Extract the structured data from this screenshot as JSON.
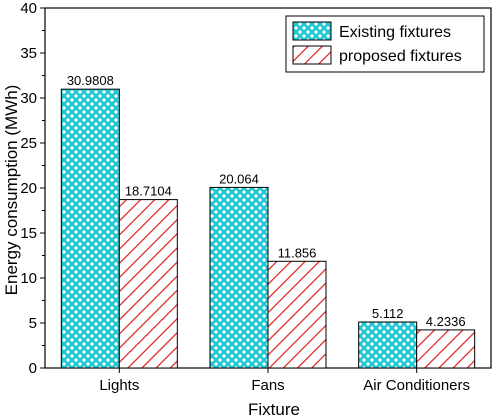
{
  "chart_data": {
    "type": "bar",
    "title": "",
    "xlabel": "Fixture",
    "ylabel": "Energy consumption (MWh)",
    "categories": [
      "Lights",
      "Fans",
      "Air Conditioners"
    ],
    "ylim": [
      0,
      40
    ],
    "yticks": [
      0,
      5,
      10,
      15,
      20,
      25,
      30,
      35,
      40
    ],
    "grid": false,
    "legend_position": "top-right",
    "series": [
      {
        "name": "Existing fixtures",
        "values": [
          30.9808,
          20.064,
          5.112
        ],
        "labels": [
          "30.9808",
          "20.064",
          "5.112"
        ],
        "color": "#1ec8d2",
        "pattern": "crosshatch"
      },
      {
        "name": "proposed fixtures",
        "values": [
          18.7104,
          11.856,
          4.2336
        ],
        "labels": [
          "18.7104",
          "11.856",
          "4.2336"
        ],
        "color": "#e01c1c",
        "pattern": "diagonal-stripes"
      }
    ]
  }
}
